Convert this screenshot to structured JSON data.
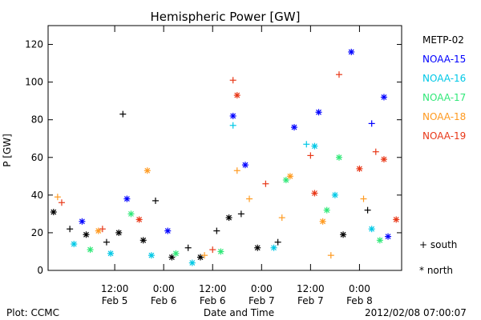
{
  "chart_data": {
    "type": "scatter",
    "title": "Hemispheric Power [GW]",
    "ylabel": "P [GW]",
    "xlabel": "Date and Time",
    "ylim": [
      0,
      130
    ],
    "xlim": [
      "2012-02-04T19:40",
      "2012-02-08T10:20"
    ],
    "yticks": [
      0,
      20,
      40,
      60,
      80,
      100,
      120
    ],
    "xticks": [
      {
        "time": "2012-02-05T12:00",
        "label1": "12:00",
        "label2": "Feb 5"
      },
      {
        "time": "2012-02-06T00:00",
        "label1": "0:00",
        "label2": "Feb 6"
      },
      {
        "time": "2012-02-06T12:00",
        "label1": "12:00",
        "label2": "Feb 6"
      },
      {
        "time": "2012-02-07T00:00",
        "label1": "0:00",
        "label2": "Feb 7"
      },
      {
        "time": "2012-02-07T12:00",
        "label1": "12:00",
        "label2": "Feb 7"
      },
      {
        "time": "2012-02-08T00:00",
        "label1": "0:00",
        "label2": "Feb 8"
      }
    ],
    "markers": {
      "south": "+",
      "north": "*"
    },
    "series": [
      {
        "name": "METP-02",
        "color": "#000000",
        "points": [
          {
            "t": "2012-02-04T21:00",
            "v": 31,
            "m": "north"
          },
          {
            "t": "2012-02-05T01:00",
            "v": 22,
            "m": "plus"
          },
          {
            "t": "2012-02-05T05:00",
            "v": 19,
            "m": "north"
          },
          {
            "t": "2012-02-05T10:00",
            "v": 15,
            "m": "plus"
          },
          {
            "t": "2012-02-05T13:00",
            "v": 20,
            "m": "north"
          },
          {
            "t": "2012-02-05T14:00",
            "v": 83,
            "m": "plus"
          },
          {
            "t": "2012-02-05T19:00",
            "v": 16,
            "m": "north"
          },
          {
            "t": "2012-02-05T22:00",
            "v": 37,
            "m": "plus"
          },
          {
            "t": "2012-02-06T02:00",
            "v": 7,
            "m": "north"
          },
          {
            "t": "2012-02-06T06:00",
            "v": 12,
            "m": "plus"
          },
          {
            "t": "2012-02-06T09:00",
            "v": 7,
            "m": "north"
          },
          {
            "t": "2012-02-06T13:00",
            "v": 21,
            "m": "plus"
          },
          {
            "t": "2012-02-06T16:00",
            "v": 28,
            "m": "north"
          },
          {
            "t": "2012-02-06T19:00",
            "v": 30,
            "m": "plus"
          },
          {
            "t": "2012-02-06T23:00",
            "v": 12,
            "m": "north"
          },
          {
            "t": "2012-02-07T04:00",
            "v": 15,
            "m": "plus"
          },
          {
            "t": "2012-02-07T20:00",
            "v": 19,
            "m": "north"
          },
          {
            "t": "2012-02-08T02:00",
            "v": 32,
            "m": "plus"
          }
        ]
      },
      {
        "name": "NOAA-15",
        "color": "#0000ff",
        "points": [
          {
            "t": "2012-02-05T04:00",
            "v": 26,
            "m": "north"
          },
          {
            "t": "2012-02-05T15:00",
            "v": 38,
            "m": "north"
          },
          {
            "t": "2012-02-06T01:00",
            "v": 21,
            "m": "north"
          },
          {
            "t": "2012-02-06T17:00",
            "v": 82,
            "m": "north"
          },
          {
            "t": "2012-02-06T20:00",
            "v": 56,
            "m": "north"
          },
          {
            "t": "2012-02-07T08:00",
            "v": 76,
            "m": "north"
          },
          {
            "t": "2012-02-07T14:00",
            "v": 84,
            "m": "north"
          },
          {
            "t": "2012-02-07T22:00",
            "v": 116,
            "m": "north"
          },
          {
            "t": "2012-02-08T03:00",
            "v": 78,
            "m": "plus"
          },
          {
            "t": "2012-02-08T06:00",
            "v": 92,
            "m": "north"
          },
          {
            "t": "2012-02-08T07:00",
            "v": 18,
            "m": "north"
          }
        ]
      },
      {
        "name": "NOAA-16",
        "color": "#00c8e6",
        "points": [
          {
            "t": "2012-02-05T02:00",
            "v": 14,
            "m": "north"
          },
          {
            "t": "2012-02-05T11:00",
            "v": 9,
            "m": "north"
          },
          {
            "t": "2012-02-05T21:00",
            "v": 8,
            "m": "north"
          },
          {
            "t": "2012-02-06T07:00",
            "v": 4,
            "m": "north"
          },
          {
            "t": "2012-02-06T17:00",
            "v": 77,
            "m": "plus"
          },
          {
            "t": "2012-02-07T03:00",
            "v": 12,
            "m": "north"
          },
          {
            "t": "2012-02-07T11:00",
            "v": 67,
            "m": "plus"
          },
          {
            "t": "2012-02-07T13:00",
            "v": 66,
            "m": "north"
          },
          {
            "t": "2012-02-07T18:00",
            "v": 40,
            "m": "north"
          },
          {
            "t": "2012-02-08T03:00",
            "v": 22,
            "m": "north"
          }
        ]
      },
      {
        "name": "NOAA-17",
        "color": "#30e878",
        "points": [
          {
            "t": "2012-02-05T06:00",
            "v": 11,
            "m": "north"
          },
          {
            "t": "2012-02-05T16:00",
            "v": 30,
            "m": "north"
          },
          {
            "t": "2012-02-06T03:00",
            "v": 9,
            "m": "north"
          },
          {
            "t": "2012-02-06T14:00",
            "v": 10,
            "m": "north"
          },
          {
            "t": "2012-02-07T06:00",
            "v": 48,
            "m": "north"
          },
          {
            "t": "2012-02-07T16:00",
            "v": 32,
            "m": "north"
          },
          {
            "t": "2012-02-07T19:00",
            "v": 60,
            "m": "north"
          },
          {
            "t": "2012-02-08T05:00",
            "v": 16,
            "m": "north"
          }
        ]
      },
      {
        "name": "NOAA-18",
        "color": "#ff9a20",
        "points": [
          {
            "t": "2012-02-04T22:00",
            "v": 39,
            "m": "plus"
          },
          {
            "t": "2012-02-05T08:00",
            "v": 21,
            "m": "north"
          },
          {
            "t": "2012-02-05T20:00",
            "v": 53,
            "m": "north"
          },
          {
            "t": "2012-02-06T10:00",
            "v": 8,
            "m": "plus"
          },
          {
            "t": "2012-02-06T18:00",
            "v": 53,
            "m": "plus"
          },
          {
            "t": "2012-02-06T21:00",
            "v": 38,
            "m": "plus"
          },
          {
            "t": "2012-02-07T05:00",
            "v": 28,
            "m": "plus"
          },
          {
            "t": "2012-02-07T07:00",
            "v": 50,
            "m": "north"
          },
          {
            "t": "2012-02-07T15:00",
            "v": 26,
            "m": "north"
          },
          {
            "t": "2012-02-07T17:00",
            "v": 8,
            "m": "plus"
          },
          {
            "t": "2012-02-08T01:00",
            "v": 38,
            "m": "plus"
          }
        ]
      },
      {
        "name": "NOAA-19",
        "color": "#e83818",
        "points": [
          {
            "t": "2012-02-04T23:00",
            "v": 36,
            "m": "plus"
          },
          {
            "t": "2012-02-05T09:00",
            "v": 22,
            "m": "plus"
          },
          {
            "t": "2012-02-05T18:00",
            "v": 27,
            "m": "north"
          },
          {
            "t": "2012-02-06T12:00",
            "v": 11,
            "m": "plus"
          },
          {
            "t": "2012-02-06T17:00",
            "v": 101,
            "m": "plus"
          },
          {
            "t": "2012-02-06T18:00",
            "v": 93,
            "m": "north"
          },
          {
            "t": "2012-02-07T01:00",
            "v": 46,
            "m": "plus"
          },
          {
            "t": "2012-02-07T12:00",
            "v": 61,
            "m": "plus"
          },
          {
            "t": "2012-02-07T13:00",
            "v": 41,
            "m": "north"
          },
          {
            "t": "2012-02-07T19:00",
            "v": 104,
            "m": "plus"
          },
          {
            "t": "2012-02-08T00:00",
            "v": 54,
            "m": "north"
          },
          {
            "t": "2012-02-08T04:00",
            "v": 63,
            "m": "plus"
          },
          {
            "t": "2012-02-08T06:00",
            "v": 59,
            "m": "north"
          },
          {
            "t": "2012-02-08T09:00",
            "v": 27,
            "m": "north"
          }
        ]
      }
    ]
  },
  "legend": {
    "south_label": "+ south",
    "north_label": "* north"
  },
  "footer": {
    "plot_credit": "Plot: CCMC",
    "timestamp": "2012/02/08 07:00:07"
  }
}
